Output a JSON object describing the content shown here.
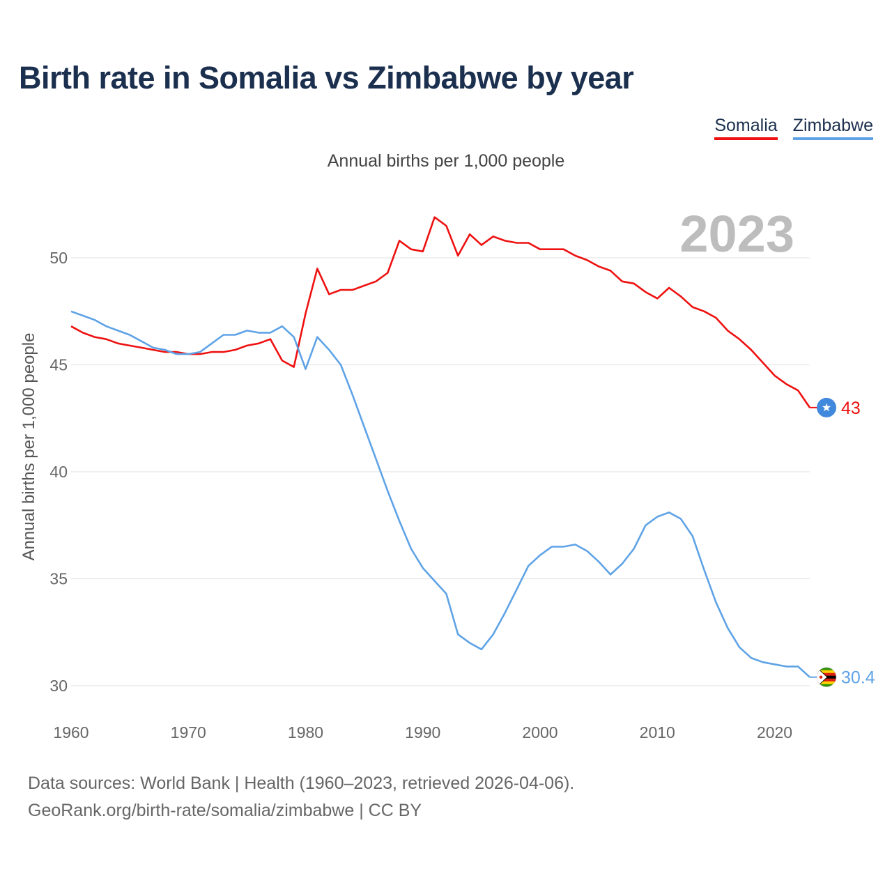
{
  "header": {
    "title": "Birth rate in Somalia vs Zimbabwe by year",
    "subtitle": "Annual births per 1,000 people"
  },
  "legend": {
    "somalia": "Somalia",
    "zimbabwe": "Zimbabwe"
  },
  "footer": {
    "line1": "Data sources: World Bank | Health (1960–2023, retrieved 2026-04-06).",
    "line2": "GeoRank.org/birth-rate/somalia/zimbabwe | CC BY"
  },
  "chart_data": {
    "type": "line",
    "title": "Birth rate in Somalia vs Zimbabwe by year",
    "subtitle": "Annual births per 1,000 people",
    "xlabel": "",
    "ylabel": "Annual births per 1,000 people",
    "year_label": "2023",
    "xlim": [
      1960,
      2023
    ],
    "ylim": [
      29,
      53
    ],
    "x_ticks": [
      1960,
      1970,
      1980,
      1990,
      2000,
      2010,
      2020
    ],
    "y_ticks": [
      30,
      35,
      40,
      45,
      50
    ],
    "grid": true,
    "legend_position": "top-right",
    "x": [
      1960,
      1961,
      1962,
      1963,
      1964,
      1965,
      1966,
      1967,
      1968,
      1969,
      1970,
      1971,
      1972,
      1973,
      1974,
      1975,
      1976,
      1977,
      1978,
      1979,
      1980,
      1981,
      1982,
      1983,
      1984,
      1985,
      1986,
      1987,
      1988,
      1989,
      1990,
      1991,
      1992,
      1993,
      1994,
      1995,
      1996,
      1997,
      1998,
      1999,
      2000,
      2001,
      2002,
      2003,
      2004,
      2005,
      2006,
      2007,
      2008,
      2009,
      2010,
      2011,
      2012,
      2013,
      2014,
      2015,
      2016,
      2017,
      2018,
      2019,
      2020,
      2021,
      2022,
      2023
    ],
    "series": [
      {
        "name": "Somalia",
        "color": "#ee1111",
        "end_label": "43",
        "values": [
          46.8,
          46.5,
          46.3,
          46.2,
          46.0,
          45.9,
          45.8,
          45.7,
          45.6,
          45.6,
          45.5,
          45.5,
          45.6,
          45.6,
          45.7,
          45.9,
          46.0,
          46.2,
          45.2,
          44.9,
          47.4,
          49.5,
          48.3,
          48.5,
          48.5,
          48.7,
          48.9,
          49.3,
          50.8,
          50.4,
          50.3,
          51.9,
          51.5,
          50.1,
          51.1,
          50.6,
          51.0,
          50.8,
          50.7,
          50.7,
          50.4,
          50.4,
          50.4,
          50.1,
          49.9,
          49.6,
          49.4,
          48.9,
          48.8,
          48.4,
          48.1,
          48.6,
          48.2,
          47.7,
          47.5,
          47.2,
          46.6,
          46.2,
          45.7,
          45.1,
          44.5,
          44.1,
          43.8,
          43.0
        ]
      },
      {
        "name": "Zimbabwe",
        "color": "#5fa3e6",
        "end_label": "30.4",
        "values": [
          47.5,
          47.3,
          47.1,
          46.8,
          46.6,
          46.4,
          46.1,
          45.8,
          45.7,
          45.5,
          45.5,
          45.6,
          46.0,
          46.4,
          46.4,
          46.6,
          46.5,
          46.5,
          46.8,
          46.3,
          44.8,
          46.3,
          45.7,
          45.0,
          43.6,
          42.1,
          40.6,
          39.1,
          37.7,
          36.4,
          35.5,
          34.9,
          34.3,
          32.4,
          32.0,
          31.7,
          32.4,
          33.4,
          34.5,
          35.6,
          36.1,
          36.5,
          36.5,
          36.6,
          36.3,
          35.8,
          35.2,
          35.7,
          36.4,
          37.5,
          37.9,
          38.1,
          37.8,
          37.0,
          35.4,
          33.9,
          32.7,
          31.8,
          31.3,
          31.1,
          31.0,
          30.9,
          30.9,
          30.4
        ]
      }
    ]
  }
}
